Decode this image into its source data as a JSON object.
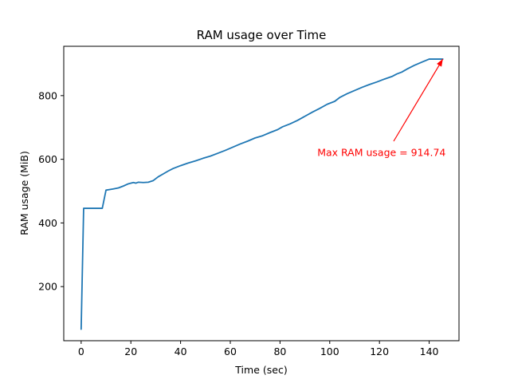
{
  "chart_data": {
    "type": "line",
    "title": "RAM usage over Time",
    "xlabel": "Time (sec)",
    "ylabel": "RAM usage (MiB)",
    "xlim": [
      -7,
      152
    ],
    "ylim": [
      30,
      955
    ],
    "xticks": [
      0,
      20,
      40,
      60,
      80,
      100,
      120,
      140
    ],
    "yticks": [
      200,
      400,
      600,
      800
    ],
    "grid": false,
    "color": "#1f77b4",
    "series": [
      {
        "x": [
          0,
          1,
          2,
          5,
          7,
          8.5,
          10,
          13,
          15,
          17,
          19,
          21,
          22,
          23,
          25,
          27,
          29,
          31,
          33,
          35,
          37,
          40,
          43,
          46,
          49,
          52,
          55,
          58,
          61,
          64,
          67,
          70,
          73,
          76,
          79,
          81,
          84,
          87,
          90,
          93,
          96,
          99,
          102,
          104,
          107,
          110,
          113,
          116,
          119,
          122,
          125,
          127,
          129,
          131,
          134,
          137,
          140,
          143,
          145.5
        ],
        "y": [
          66,
          446,
          446,
          446,
          446,
          446,
          503,
          507,
          510,
          516,
          523,
          527,
          525,
          528,
          527,
          528,
          533,
          545,
          554,
          563,
          571,
          580,
          588,
          595,
          603,
          610,
          619,
          628,
          638,
          648,
          657,
          667,
          674,
          684,
          693,
          702,
          711,
          722,
          735,
          748,
          760,
          773,
          782,
          794,
          806,
          816,
          826,
          835,
          843,
          852,
          860,
          868,
          874,
          883,
          895,
          905,
          914.74,
          914.74,
          914.74
        ]
      }
    ],
    "annotation": {
      "text": "Max RAM usage = 914.74",
      "color": "#ff0000",
      "point": [
        145.5,
        914.74
      ],
      "text_pos": [
        95,
        620
      ]
    }
  }
}
